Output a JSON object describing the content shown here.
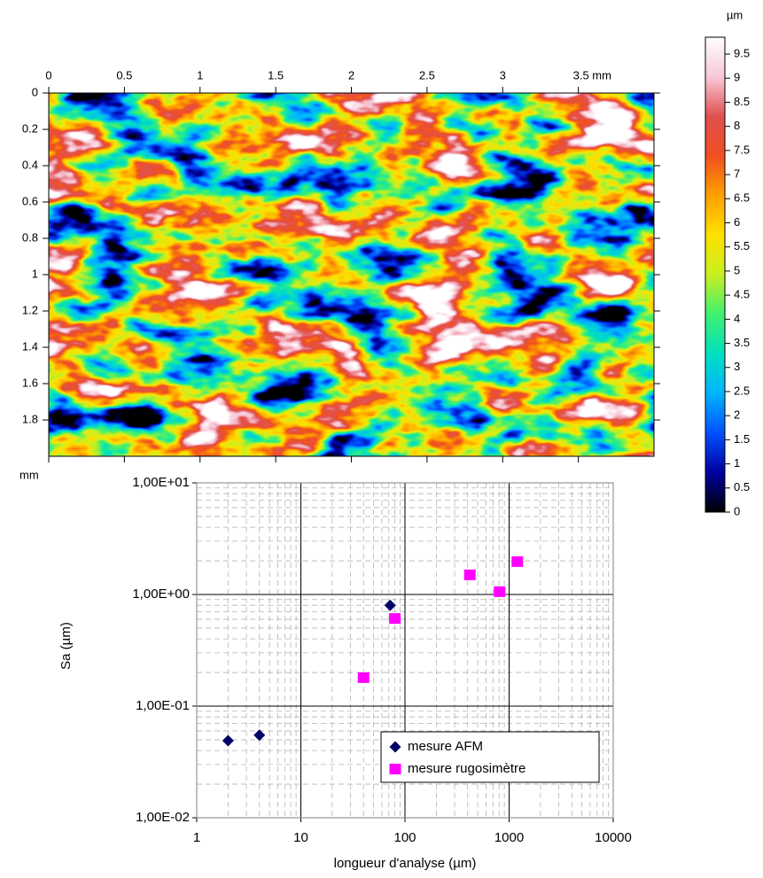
{
  "chart_data": [
    {
      "type": "heatmap",
      "xlim": [
        0,
        4
      ],
      "ylim": [
        0,
        2
      ],
      "xticks": [
        0,
        0.5,
        1,
        1.5,
        2,
        2.5,
        3,
        {
          "value": 3.5,
          "label": "3.5 mm"
        }
      ],
      "yticks": [
        0,
        0.2,
        0.4,
        0.6,
        0.8,
        1,
        1.2,
        1.4,
        1.6,
        1.8
      ],
      "y_unit": "mm",
      "colorbar": {
        "unit": "µm",
        "lim": [
          0,
          9.85
        ],
        "ticks": [
          0,
          0.5,
          1,
          1.5,
          2,
          2.5,
          3,
          3.5,
          4,
          4.5,
          5,
          5.5,
          6,
          6.5,
          7,
          7.5,
          8,
          8.5,
          9,
          9.5
        ],
        "colors": [
          "#000000",
          "#0000a0",
          "#0050ff",
          "#00b4ff",
          "#00e0c0",
          "#40f070",
          "#c8f020",
          "#ffe000",
          "#ffa000",
          "#f05020",
          "#e05050",
          "#f8c8d8",
          "#ffffff"
        ]
      }
    },
    {
      "type": "scatter",
      "xlabel": "longueur d'analyse (µm)",
      "ylabel": "Sa (µm)",
      "log_x": true,
      "log_y": true,
      "grid": true,
      "legend": "lower right",
      "xlim": [
        1,
        10000
      ],
      "ylim": [
        0.01,
        10
      ],
      "xticks": [
        1,
        10,
        100,
        1000,
        10000
      ],
      "yticks": [
        {
          "value": 0.01,
          "label": "1,00E-02"
        },
        {
          "value": 0.1,
          "label": "1,00E-01"
        },
        {
          "value": 1,
          "label": "1,00E+00"
        },
        {
          "value": 10,
          "label": "1,00E+01"
        }
      ],
      "series": [
        {
          "name": "mesure AFM",
          "color": "#000066",
          "marker": "diamond",
          "x": [
            2,
            4,
            72
          ],
          "values": [
            0.049,
            0.055,
            0.8
          ]
        },
        {
          "name": "mesure rugosimètre",
          "color": "#ff00ff",
          "marker": "square",
          "x": [
            40,
            80,
            420,
            810,
            1200
          ],
          "values": [
            0.18,
            0.61,
            1.5,
            1.06,
            1.97
          ]
        }
      ]
    }
  ]
}
